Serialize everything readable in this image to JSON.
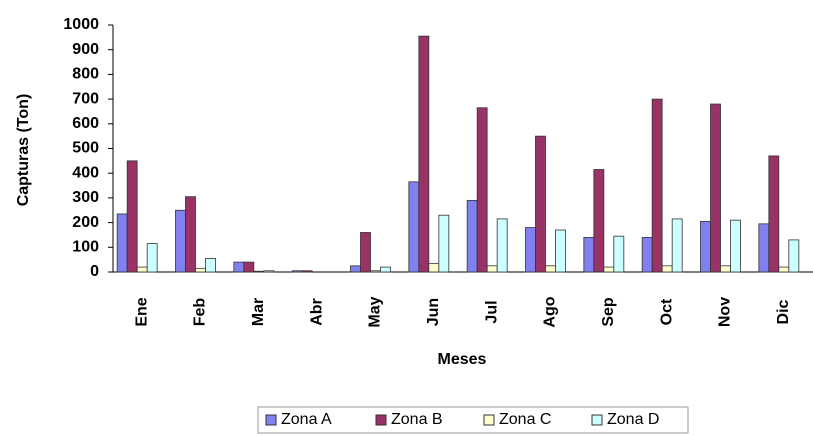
{
  "chart_data": {
    "type": "bar",
    "x_label": "Meses",
    "y_label": "Capturas (Ton)",
    "categories": [
      "Ene",
      "Feb",
      "Mar",
      "Abr",
      "May",
      "Jun",
      "Jul",
      "Ago",
      "Sep",
      "Oct",
      "Nov",
      "Dic"
    ],
    "series": [
      {
        "name": "Zona A",
        "color": "#8080f0",
        "values": [
          235,
          250,
          40,
          5,
          25,
          365,
          290,
          180,
          140,
          140,
          205,
          195
        ]
      },
      {
        "name": "Zona B",
        "color": "#993366",
        "values": [
          450,
          305,
          40,
          5,
          160,
          955,
          665,
          550,
          415,
          700,
          680,
          470
        ]
      },
      {
        "name": "Zona C",
        "color": "#ffffcc",
        "values": [
          20,
          15,
          3,
          0,
          5,
          35,
          25,
          25,
          20,
          25,
          25,
          20
        ]
      },
      {
        "name": "Zona D",
        "color": "#ccffff",
        "values": [
          115,
          55,
          5,
          0,
          20,
          230,
          215,
          170,
          145,
          215,
          210,
          130
        ]
      }
    ],
    "ylim": [
      0,
      1000
    ],
    "yticks": [
      0,
      100,
      200,
      300,
      400,
      500,
      600,
      700,
      800,
      900,
      1000
    ],
    "legend": "bottom",
    "grid": false
  }
}
